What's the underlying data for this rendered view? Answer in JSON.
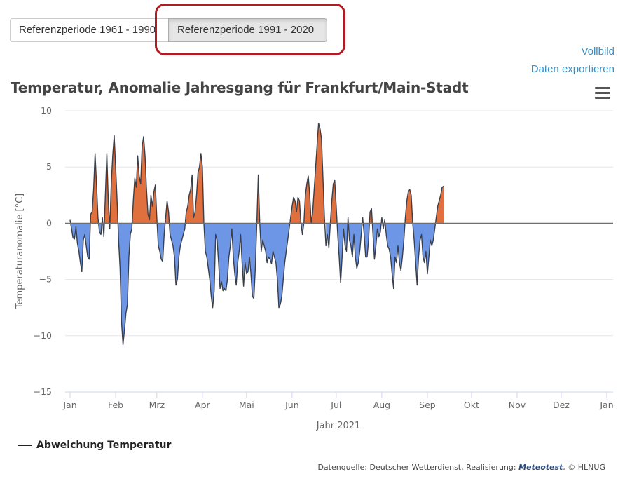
{
  "tabs": [
    {
      "label": "Referenzperiode 1961 - 1990",
      "active": false
    },
    {
      "label": "Referenzperiode 1991 - 2020",
      "active": true
    }
  ],
  "links": {
    "fullscreen": "Vollbild",
    "export": "Daten exportieren"
  },
  "legend_label": "Abweichung Temperatur",
  "source": {
    "prefix": "Datenquelle: Deutscher Wetterdienst, Realisierung: ",
    "brand": "Meteotest",
    "suffix": ", © HLNUG"
  },
  "icons": {
    "menu": "hamburger-menu-icon"
  },
  "colors": {
    "positive": "#e0703e",
    "negative": "#6d97e6",
    "line": "#3a3f4a",
    "link": "#3a8fc7",
    "highlight": "#b11b22"
  },
  "chart_data": {
    "type": "area",
    "title": "Temperatur, Anomalie Jahresgang für Frankfurt/Main-Stadt",
    "xlabel": "Jahr 2021",
    "ylabel": "Temperaturanomalie [°C]",
    "ylim": [
      -15,
      10
    ],
    "yticks": [
      10,
      5,
      0,
      -5,
      -10,
      -15
    ],
    "x_range": [
      "2021-01-01",
      "2022-01-01"
    ],
    "xticks": [
      {
        "date": "2021-01-01",
        "label": "Jan"
      },
      {
        "date": "2021-02-01",
        "label": "Feb"
      },
      {
        "date": "2021-03-01",
        "label": "Mrz"
      },
      {
        "date": "2021-04-01",
        "label": "Apr"
      },
      {
        "date": "2021-05-01",
        "label": "Mai"
      },
      {
        "date": "2021-06-01",
        "label": "Jun"
      },
      {
        "date": "2021-07-01",
        "label": "Jul"
      },
      {
        "date": "2021-08-01",
        "label": "Aug"
      },
      {
        "date": "2021-09-01",
        "label": "Sep"
      },
      {
        "date": "2021-10-01",
        "label": "Okt"
      },
      {
        "date": "2021-11-01",
        "label": "Nov"
      },
      {
        "date": "2021-12-01",
        "label": "Dez"
      },
      {
        "date": "2022-01-01",
        "label": "Jan"
      }
    ],
    "grid": true,
    "legend": "bottom-left",
    "series": [
      {
        "name": "Abweichung Temperatur",
        "points": [
          [
            "2021-01-01",
            0.3
          ],
          [
            "2021-01-02",
            -0.5
          ],
          [
            "2021-01-03",
            -1.3
          ],
          [
            "2021-01-04",
            -1.4
          ],
          [
            "2021-01-05",
            -0.3
          ],
          [
            "2021-01-06",
            -1.8
          ],
          [
            "2021-01-07",
            -2.5
          ],
          [
            "2021-01-08",
            -3.5
          ],
          [
            "2021-01-09",
            -4.3
          ],
          [
            "2021-01-10",
            -1.5
          ],
          [
            "2021-01-11",
            -1.0
          ],
          [
            "2021-01-12",
            -2.0
          ],
          [
            "2021-01-13",
            -3.0
          ],
          [
            "2021-01-14",
            -3.2
          ],
          [
            "2021-01-15",
            0.8
          ],
          [
            "2021-01-16",
            1.0
          ],
          [
            "2021-01-17",
            3.0
          ],
          [
            "2021-01-18",
            6.2
          ],
          [
            "2021-01-19",
            3.5
          ],
          [
            "2021-01-20",
            0.5
          ],
          [
            "2021-01-21",
            -0.8
          ],
          [
            "2021-01-22",
            -1.0
          ],
          [
            "2021-01-23",
            0.5
          ],
          [
            "2021-01-24",
            -1.2
          ],
          [
            "2021-01-25",
            2.5
          ],
          [
            "2021-01-26",
            6.2
          ],
          [
            "2021-01-27",
            2.0
          ],
          [
            "2021-01-28",
            -0.5
          ],
          [
            "2021-01-29",
            3.5
          ],
          [
            "2021-01-30",
            6.0
          ],
          [
            "2021-01-31",
            7.8
          ],
          [
            "2021-02-01",
            5.0
          ],
          [
            "2021-02-02",
            2.0
          ],
          [
            "2021-02-03",
            -1.5
          ],
          [
            "2021-02-04",
            -4.0
          ],
          [
            "2021-02-05",
            -8.8
          ],
          [
            "2021-02-06",
            -10.8
          ],
          [
            "2021-02-07",
            -9.5
          ],
          [
            "2021-02-08",
            -8.0
          ],
          [
            "2021-02-09",
            -7.2
          ],
          [
            "2021-02-10",
            -3.0
          ],
          [
            "2021-02-11",
            -1.0
          ],
          [
            "2021-02-12",
            -0.5
          ],
          [
            "2021-02-13",
            2.0
          ],
          [
            "2021-02-14",
            4.0
          ],
          [
            "2021-02-15",
            3.2
          ],
          [
            "2021-02-16",
            6.0
          ],
          [
            "2021-02-17",
            4.2
          ],
          [
            "2021-02-18",
            3.5
          ],
          [
            "2021-02-19",
            6.8
          ],
          [
            "2021-02-20",
            7.7
          ],
          [
            "2021-02-21",
            6.0
          ],
          [
            "2021-02-22",
            3.0
          ],
          [
            "2021-02-23",
            0.8
          ],
          [
            "2021-02-24",
            0.3
          ],
          [
            "2021-02-25",
            2.5
          ],
          [
            "2021-02-26",
            1.5
          ],
          [
            "2021-02-27",
            2.8
          ],
          [
            "2021-02-28",
            3.4
          ],
          [
            "2021-03-01",
            0.5
          ],
          [
            "2021-03-02",
            -2.0
          ],
          [
            "2021-03-03",
            -2.5
          ],
          [
            "2021-03-04",
            -3.2
          ],
          [
            "2021-03-05",
            -3.4
          ],
          [
            "2021-03-06",
            -1.0
          ],
          [
            "2021-03-07",
            0.5
          ],
          [
            "2021-03-08",
            2.0
          ],
          [
            "2021-03-09",
            1.0
          ],
          [
            "2021-03-10",
            -1.0
          ],
          [
            "2021-03-11",
            -1.5
          ],
          [
            "2021-03-12",
            -2.0
          ],
          [
            "2021-03-13",
            -3.0
          ],
          [
            "2021-03-14",
            -5.5
          ],
          [
            "2021-03-15",
            -5.0
          ],
          [
            "2021-03-16",
            -3.0
          ],
          [
            "2021-03-17",
            -2.0
          ],
          [
            "2021-03-18",
            -1.5
          ],
          [
            "2021-03-19",
            -1.0
          ],
          [
            "2021-03-20",
            -0.5
          ],
          [
            "2021-03-21",
            1.0
          ],
          [
            "2021-03-22",
            1.5
          ],
          [
            "2021-03-23",
            2.5
          ],
          [
            "2021-03-24",
            3.0
          ],
          [
            "2021-03-25",
            4.3
          ],
          [
            "2021-03-26",
            0.5
          ],
          [
            "2021-03-27",
            1.0
          ],
          [
            "2021-03-28",
            2.5
          ],
          [
            "2021-03-29",
            4.5
          ],
          [
            "2021-03-30",
            5.0
          ],
          [
            "2021-03-31",
            6.2
          ],
          [
            "2021-04-01",
            5.0
          ],
          [
            "2021-04-02",
            0.0
          ],
          [
            "2021-04-03",
            -2.5
          ],
          [
            "2021-04-04",
            -3.0
          ],
          [
            "2021-04-05",
            -4.0
          ],
          [
            "2021-04-06",
            -5.0
          ],
          [
            "2021-04-07",
            -6.5
          ],
          [
            "2021-04-08",
            -7.5
          ],
          [
            "2021-04-09",
            -6.0
          ],
          [
            "2021-04-10",
            -1.0
          ],
          [
            "2021-04-11",
            -1.5
          ],
          [
            "2021-04-12",
            -3.5
          ],
          [
            "2021-04-13",
            -5.8
          ],
          [
            "2021-04-14",
            -5.2
          ],
          [
            "2021-04-15",
            -6.0
          ],
          [
            "2021-04-16",
            -5.8
          ],
          [
            "2021-04-17",
            -6.0
          ],
          [
            "2021-04-18",
            -5.0
          ],
          [
            "2021-04-19",
            -3.0
          ],
          [
            "2021-04-20",
            -2.0
          ],
          [
            "2021-04-21",
            -0.5
          ],
          [
            "2021-04-22",
            -3.0
          ],
          [
            "2021-04-23",
            -4.5
          ],
          [
            "2021-04-24",
            -5.5
          ],
          [
            "2021-04-25",
            -3.5
          ],
          [
            "2021-04-26",
            -2.5
          ],
          [
            "2021-04-27",
            -1.0
          ],
          [
            "2021-04-28",
            -3.5
          ],
          [
            "2021-04-29",
            -5.6
          ],
          [
            "2021-04-30",
            -3.5
          ],
          [
            "2021-05-01",
            -4.5
          ],
          [
            "2021-05-02",
            -4.3
          ],
          [
            "2021-05-03",
            -3.0
          ],
          [
            "2021-05-04",
            -4.5
          ],
          [
            "2021-05-05",
            -6.5
          ],
          [
            "2021-05-06",
            -6.7
          ],
          [
            "2021-05-07",
            -4.0
          ],
          [
            "2021-05-08",
            0.0
          ],
          [
            "2021-05-09",
            4.3
          ],
          [
            "2021-05-10",
            0.0
          ],
          [
            "2021-05-11",
            -2.5
          ],
          [
            "2021-05-12",
            -1.5
          ],
          [
            "2021-05-13",
            -2.0
          ],
          [
            "2021-05-14",
            -2.5
          ],
          [
            "2021-05-15",
            -3.5
          ],
          [
            "2021-05-16",
            -3.0
          ],
          [
            "2021-05-17",
            -3.2
          ],
          [
            "2021-05-18",
            -3.6
          ],
          [
            "2021-05-19",
            -2.5
          ],
          [
            "2021-05-20",
            -3.0
          ],
          [
            "2021-05-21",
            -3.5
          ],
          [
            "2021-05-22",
            -5.0
          ],
          [
            "2021-05-23",
            -7.5
          ],
          [
            "2021-05-24",
            -7.2
          ],
          [
            "2021-05-25",
            -6.5
          ],
          [
            "2021-05-26",
            -5.0
          ],
          [
            "2021-05-27",
            -3.5
          ],
          [
            "2021-05-28",
            -2.5
          ],
          [
            "2021-05-29",
            -1.5
          ],
          [
            "2021-05-30",
            -0.5
          ],
          [
            "2021-05-31",
            0.5
          ],
          [
            "2021-06-01",
            1.5
          ],
          [
            "2021-06-02",
            2.3
          ],
          [
            "2021-06-03",
            2.0
          ],
          [
            "2021-06-04",
            1.0
          ],
          [
            "2021-06-05",
            2.3
          ],
          [
            "2021-06-06",
            2.0
          ],
          [
            "2021-06-07",
            0.0
          ],
          [
            "2021-06-08",
            -1.0
          ],
          [
            "2021-06-09",
            0.0
          ],
          [
            "2021-06-10",
            2.5
          ],
          [
            "2021-06-11",
            3.5
          ],
          [
            "2021-06-12",
            4.2
          ],
          [
            "2021-06-13",
            2.5
          ],
          [
            "2021-06-14",
            0.0
          ],
          [
            "2021-06-15",
            1.0
          ],
          [
            "2021-06-16",
            3.0
          ],
          [
            "2021-06-17",
            5.0
          ],
          [
            "2021-06-18",
            7.0
          ],
          [
            "2021-06-19",
            8.9
          ],
          [
            "2021-06-20",
            8.4
          ],
          [
            "2021-06-21",
            7.5
          ],
          [
            "2021-06-22",
            4.0
          ],
          [
            "2021-06-23",
            0.5
          ],
          [
            "2021-06-24",
            -2.0
          ],
          [
            "2021-06-25",
            -1.0
          ],
          [
            "2021-06-26",
            -2.2
          ],
          [
            "2021-06-27",
            0.0
          ],
          [
            "2021-06-28",
            2.0
          ],
          [
            "2021-06-29",
            3.5
          ],
          [
            "2021-06-30",
            3.8
          ],
          [
            "2021-07-01",
            1.5
          ],
          [
            "2021-07-02",
            -1.0
          ],
          [
            "2021-07-03",
            -3.0
          ],
          [
            "2021-07-04",
            -5.3
          ],
          [
            "2021-07-05",
            -3.0
          ],
          [
            "2021-07-06",
            -0.5
          ],
          [
            "2021-07-07",
            -2.0
          ],
          [
            "2021-07-08",
            -2.5
          ],
          [
            "2021-07-09",
            0.5
          ],
          [
            "2021-07-10",
            -1.5
          ],
          [
            "2021-07-11",
            -2.0
          ],
          [
            "2021-07-12",
            -3.0
          ],
          [
            "2021-07-13",
            -1.0
          ],
          [
            "2021-07-14",
            -3.0
          ],
          [
            "2021-07-15",
            -4.0
          ],
          [
            "2021-07-16",
            -3.5
          ],
          [
            "2021-07-17",
            -2.5
          ],
          [
            "2021-07-18",
            -1.0
          ],
          [
            "2021-07-19",
            0.5
          ],
          [
            "2021-07-20",
            -1.0
          ],
          [
            "2021-07-21",
            -3.0
          ],
          [
            "2021-07-22",
            -3.0
          ],
          [
            "2021-07-23",
            -1.5
          ],
          [
            "2021-07-24",
            1.0
          ],
          [
            "2021-07-25",
            1.3
          ],
          [
            "2021-07-26",
            -1.0
          ],
          [
            "2021-07-27",
            -3.2
          ],
          [
            "2021-07-28",
            -2.0
          ],
          [
            "2021-07-29",
            -0.5
          ],
          [
            "2021-07-30",
            -1.2
          ],
          [
            "2021-07-31",
            -0.8
          ],
          [
            "2021-08-01",
            0.5
          ],
          [
            "2021-08-02",
            -0.5
          ],
          [
            "2021-08-03",
            0.3
          ],
          [
            "2021-08-04",
            -1.0
          ],
          [
            "2021-08-05",
            -2.0
          ],
          [
            "2021-08-06",
            -2.3
          ],
          [
            "2021-08-07",
            -3.0
          ],
          [
            "2021-08-08",
            -4.5
          ],
          [
            "2021-08-09",
            -5.8
          ],
          [
            "2021-08-10",
            -3.0
          ],
          [
            "2021-08-11",
            -3.5
          ],
          [
            "2021-08-12",
            -2.0
          ],
          [
            "2021-08-13",
            -3.5
          ],
          [
            "2021-08-14",
            -4.2
          ],
          [
            "2021-08-15",
            -3.0
          ],
          [
            "2021-08-16",
            -1.5
          ],
          [
            "2021-08-17",
            0.5
          ],
          [
            "2021-08-18",
            2.0
          ],
          [
            "2021-08-19",
            2.8
          ],
          [
            "2021-08-20",
            3.0
          ],
          [
            "2021-08-21",
            2.5
          ],
          [
            "2021-08-22",
            0.0
          ],
          [
            "2021-08-23",
            -1.5
          ],
          [
            "2021-08-24",
            -3.5
          ],
          [
            "2021-08-25",
            -5.5
          ],
          [
            "2021-08-26",
            -3.0
          ],
          [
            "2021-08-27",
            -1.5
          ],
          [
            "2021-08-28",
            -1.0
          ],
          [
            "2021-08-29",
            -3.0
          ],
          [
            "2021-08-30",
            -3.5
          ],
          [
            "2021-08-31",
            -2.5
          ],
          [
            "2021-09-01",
            -4.5
          ],
          [
            "2021-09-02",
            -3.0
          ],
          [
            "2021-09-03",
            -1.5
          ],
          [
            "2021-09-04",
            -2.0
          ],
          [
            "2021-09-05",
            -1.5
          ],
          [
            "2021-09-06",
            -0.5
          ],
          [
            "2021-09-07",
            0.5
          ],
          [
            "2021-09-08",
            1.5
          ],
          [
            "2021-09-09",
            2.0
          ],
          [
            "2021-09-10",
            2.5
          ],
          [
            "2021-09-11",
            3.2
          ],
          [
            "2021-09-12",
            3.3
          ]
        ]
      }
    ]
  }
}
